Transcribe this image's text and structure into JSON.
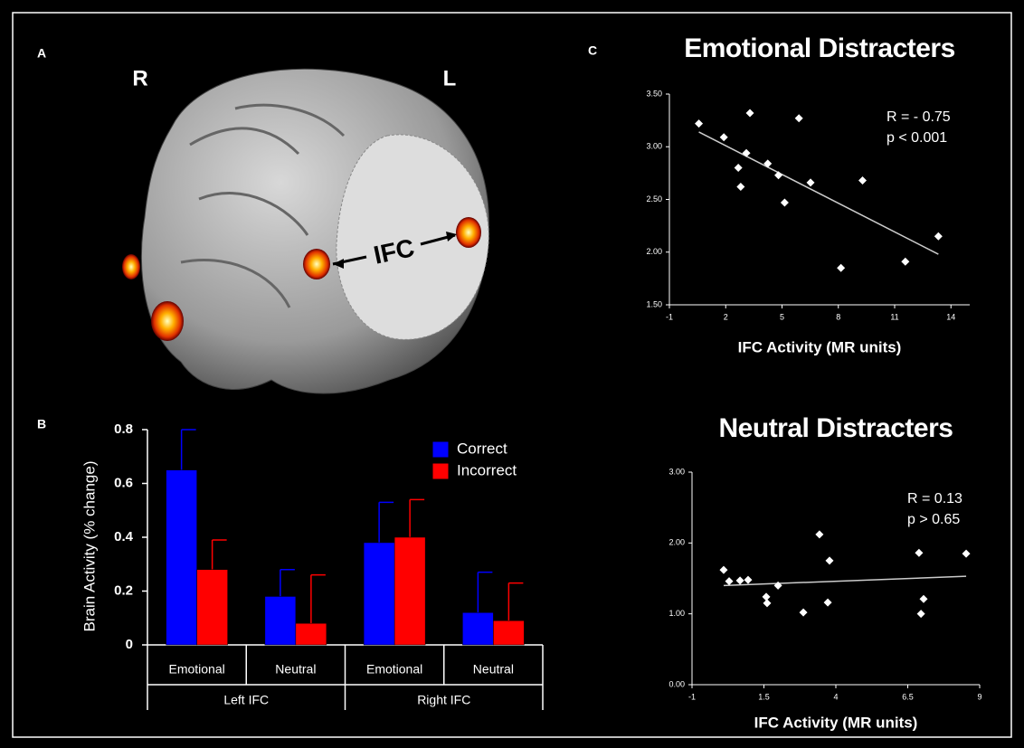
{
  "panels": [
    "A",
    "B",
    "C"
  ],
  "brain": {
    "hemispheres": [
      "R",
      "L"
    ],
    "region": "IFC"
  },
  "chart_data": [
    {
      "type": "bar",
      "ylabel": "Brain Activity (% change)",
      "categories": [
        "Emotional",
        "Neutral",
        "Emotional",
        "Neutral"
      ],
      "groups": [
        "Left IFC",
        "Right IFC"
      ],
      "series": [
        {
          "name": "Correct",
          "color": "#0000ff",
          "values": [
            0.65,
            0.18,
            0.38,
            0.12
          ],
          "errors": [
            0.15,
            0.1,
            0.15,
            0.15
          ]
        },
        {
          "name": "Incorrect",
          "color": "#ff0000",
          "values": [
            0.28,
            0.08,
            0.4,
            0.09
          ],
          "errors": [
            0.11,
            0.18,
            0.14,
            0.14
          ]
        }
      ],
      "ylim": [
        0,
        0.8
      ],
      "yticks": [
        0,
        0.2,
        0.4,
        0.6,
        0.8
      ]
    },
    {
      "type": "scatter",
      "title": "Emotional Distracters",
      "xlabel": "IFC Activity (MR units)",
      "annotations": [
        "R = - 0.75",
        "p < 0.001"
      ],
      "x": [
        0.57,
        1.9,
        3.29,
        3.1,
        2.67,
        2.8,
        4.24,
        4.81,
        5.14,
        5.9,
        6.52,
        9.29,
        8.14,
        11.57,
        13.33
      ],
      "values": [
        3.22,
        3.09,
        3.32,
        2.94,
        2.8,
        2.62,
        2.84,
        2.73,
        2.47,
        3.27,
        2.66,
        2.68,
        1.85,
        1.91,
        2.15
      ],
      "fit": {
        "x": [
          0.57,
          13.33
        ],
        "y": [
          3.14,
          1.98
        ]
      },
      "xlim": [
        -1,
        15
      ],
      "xticks": [
        -1,
        2,
        5,
        8,
        11,
        14
      ],
      "ylim": [
        1.5,
        3.5
      ],
      "yticks": [
        {
          "value": 1.5,
          "label": "1.50"
        },
        {
          "value": 2,
          "label": "2.00"
        },
        {
          "value": 2.5,
          "label": "2.50"
        },
        {
          "value": 3,
          "label": "3.00"
        },
        {
          "value": 3.5,
          "label": "3.50"
        }
      ]
    },
    {
      "type": "scatter",
      "title": "Neutral Distracters",
      "xlabel": "IFC Activity (MR units)",
      "annotations": [
        "R = 0.13",
        "p > 0.65"
      ],
      "x": [
        0.1,
        0.29,
        0.67,
        0.95,
        1.58,
        1.61,
        1.99,
        2.87,
        3.43,
        3.78,
        3.72,
        6.89,
        7.05,
        6.96,
        8.53
      ],
      "values": [
        1.62,
        1.46,
        1.47,
        1.48,
        1.24,
        1.15,
        1.4,
        1.02,
        2.12,
        1.75,
        1.16,
        1.86,
        1.21,
        1.0,
        1.85
      ],
      "fit": {
        "x": [
          0.1,
          8.53
        ],
        "y": [
          1.4,
          1.53
        ]
      },
      "xlim": [
        -1,
        9
      ],
      "xticks": [
        -1,
        1.5,
        4,
        6.5,
        9
      ],
      "ylim": [
        0,
        3
      ],
      "yticks": [
        {
          "value": 0,
          "label": "0.00"
        },
        {
          "value": 1,
          "label": "1.00"
        },
        {
          "value": 2,
          "label": "2.00"
        },
        {
          "value": 3,
          "label": "3.00"
        }
      ]
    }
  ]
}
